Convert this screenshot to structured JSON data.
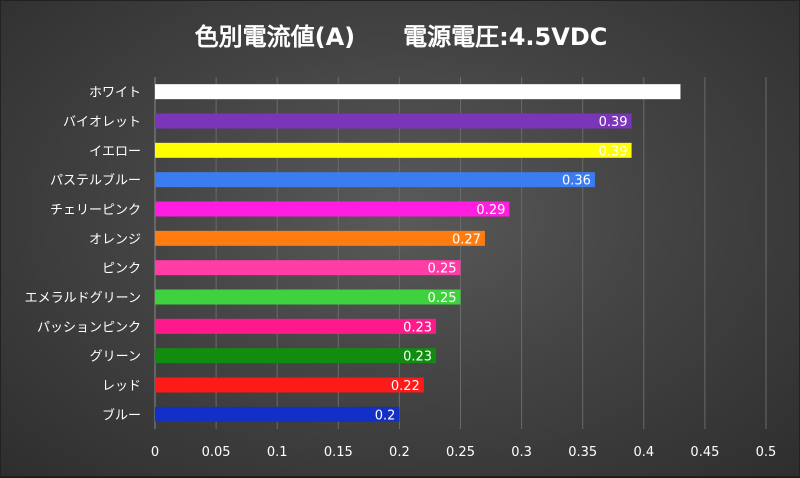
{
  "chart_data": {
    "type": "bar",
    "orientation": "horizontal",
    "title": "色別電流値(A)　　電源電圧:4.5VDC",
    "xlabel": "",
    "ylabel": "",
    "xlim": [
      0,
      0.5
    ],
    "x_ticks": [
      "0",
      "0.05",
      "0.1",
      "0.15",
      "0.2",
      "0.25",
      "0.3",
      "0.35",
      "0.4",
      "0.45",
      "0.5"
    ],
    "x_tick_values": [
      0,
      0.05,
      0.1,
      0.15,
      0.2,
      0.25,
      0.3,
      0.35,
      0.4,
      0.45,
      0.5
    ],
    "grid": true,
    "legend": "none",
    "categories": [
      "ホワイト",
      "バイオレット",
      "イエロー",
      "パステルブルー",
      "チェリーピンク",
      "オレンジ",
      "ピンク",
      "エメラルドグリーン",
      "パッションピンク",
      "グリーン",
      "レッド",
      "ブルー"
    ],
    "values": [
      0.43,
      0.39,
      0.39,
      0.36,
      0.29,
      0.27,
      0.25,
      0.25,
      0.23,
      0.23,
      0.22,
      0.2
    ],
    "data_labels": [
      "0.43",
      "0.39",
      "0.39",
      "0.36",
      "0.29",
      "0.27",
      "0.25",
      "0.25",
      "0.23",
      "0.23",
      "0.22",
      "0.2"
    ],
    "bar_colors": [
      "#ffffff",
      "#7b35b8",
      "#ffff00",
      "#3d7cf0",
      "#ff1de0",
      "#ff7d10",
      "#ff3da5",
      "#3fd23f",
      "#ff1a8c",
      "#118c11",
      "#ff1a1a",
      "#1230c8"
    ],
    "label_colors": [
      "#e6e6e6",
      "#ffffff",
      "#e6e600",
      "#ffffff",
      "#ffffff",
      "#ffffff",
      "#ffffff",
      "#ffffff",
      "#ffffff",
      "#ffffff",
      "#ffffff",
      "#ffffff"
    ]
  }
}
